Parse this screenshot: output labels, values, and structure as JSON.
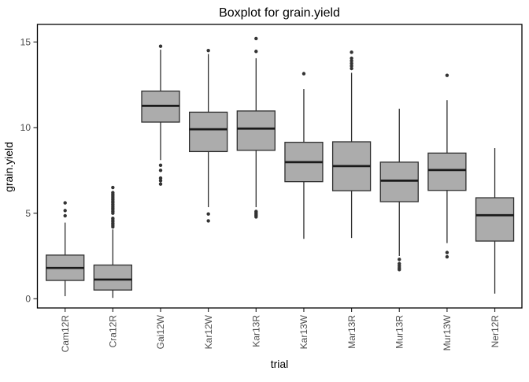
{
  "title": "Boxplot for grain.yield",
  "axes": {
    "x_title": "trial",
    "y_title": "grain.yield",
    "y_tick_labels": [
      "0",
      "5",
      "10",
      "15"
    ]
  },
  "colors": {
    "box_fill": "#acacac",
    "box_stroke": "#2e2e2e",
    "median_stroke": "#1a1a1a",
    "outlier_fill": "#333333",
    "axis_text": "#4d4d4d",
    "panel_border": "#000000",
    "tick_mark": "#333333"
  },
  "chart_data": {
    "type": "boxplot",
    "title": "Boxplot for grain.yield",
    "xlabel": "trial",
    "ylabel": "grain.yield",
    "ylim": [
      -0.55,
      16.0
    ],
    "y_ticks": [
      0,
      5,
      10,
      15
    ],
    "grid": false,
    "legend": false,
    "categories": [
      "Cam12R",
      "Cra12R",
      "Gai12W",
      "Kar12W",
      "Kar13R",
      "Kar13W",
      "Mar13R",
      "Mur13R",
      "Mur13W",
      "Ner12R"
    ],
    "series": [
      {
        "name": "Cam12R",
        "whisker_low": 0.15,
        "q1": 1.07,
        "median": 1.8,
        "q3": 2.55,
        "whisker_high": 4.45,
        "outliers": [
          5.6,
          5.15,
          4.85
        ]
      },
      {
        "name": "Cra12R",
        "whisker_low": 0.05,
        "q1": 0.51,
        "median": 1.12,
        "q3": 1.97,
        "whisker_high": 4.05,
        "outliers": [
          6.5,
          6.2,
          6.1,
          6.0,
          5.9,
          5.8,
          5.7,
          5.6,
          5.5,
          5.4,
          5.3,
          5.2,
          5.1,
          5.0,
          4.7,
          4.6,
          4.5,
          4.4,
          4.3,
          4.2
        ]
      },
      {
        "name": "Gai12W",
        "whisker_low": 8.1,
        "q1": 10.32,
        "median": 11.27,
        "q3": 12.13,
        "whisker_high": 14.55,
        "outliers": [
          14.75,
          7.8,
          7.5,
          7.05,
          6.9,
          6.7
        ]
      },
      {
        "name": "Kar12W",
        "whisker_low": 5.35,
        "q1": 8.6,
        "median": 9.9,
        "q3": 10.9,
        "whisker_high": 14.3,
        "outliers": [
          14.5,
          4.95,
          4.55
        ]
      },
      {
        "name": "Kar13R",
        "whisker_low": 5.35,
        "q1": 8.67,
        "median": 9.94,
        "q3": 10.97,
        "whisker_high": 14.05,
        "outliers": [
          15.2,
          14.45,
          5.1,
          5.02,
          4.94,
          4.86,
          4.78
        ]
      },
      {
        "name": "Kar13W",
        "whisker_low": 3.5,
        "q1": 6.84,
        "median": 7.98,
        "q3": 9.14,
        "whisker_high": 12.25,
        "outliers": [
          13.15
        ]
      },
      {
        "name": "Mar13R",
        "whisker_low": 3.55,
        "q1": 6.31,
        "median": 7.75,
        "q3": 9.17,
        "whisker_high": 13.2,
        "outliers": [
          14.4,
          14.05,
          13.9,
          13.75,
          13.6,
          13.45
        ]
      },
      {
        "name": "Mur13R",
        "whisker_low": 2.5,
        "q1": 5.67,
        "median": 6.9,
        "q3": 7.98,
        "whisker_high": 11.1,
        "outliers": [
          2.3,
          2.05,
          1.92,
          1.8,
          1.7
        ]
      },
      {
        "name": "Mur13W",
        "whisker_low": 3.25,
        "q1": 6.33,
        "median": 7.52,
        "q3": 8.51,
        "whisker_high": 11.6,
        "outliers": [
          13.05,
          2.7,
          2.45
        ]
      },
      {
        "name": "Ner12R",
        "whisker_low": 0.3,
        "q1": 3.37,
        "median": 4.88,
        "q3": 5.9,
        "whisker_high": 8.8,
        "outliers": []
      }
    ]
  }
}
